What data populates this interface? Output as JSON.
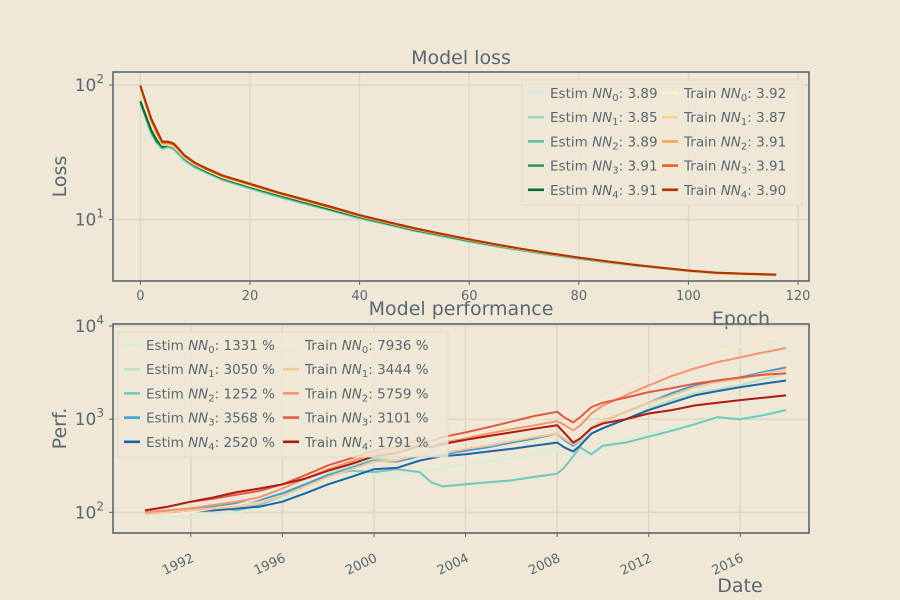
{
  "chart_data": [
    {
      "type": "line",
      "title": "Model loss",
      "xlabel": "Epoch",
      "ylabel": "Loss",
      "yscale": "log",
      "xlim": [
        -5,
        122
      ],
      "ylim": [
        3.5,
        125
      ],
      "x_ticks": [
        "0",
        "20",
        "40",
        "60",
        "80",
        "100",
        "120"
      ],
      "y_ticks": [
        {
          "base": "10",
          "exp": "2"
        },
        {
          "base": "10",
          "exp": "1"
        }
      ],
      "grid": true,
      "legend_position": "top-right",
      "x": [
        0,
        1,
        2,
        3,
        4,
        5,
        6,
        7,
        8,
        10,
        12,
        15,
        20,
        25,
        30,
        35,
        40,
        45,
        50,
        55,
        60,
        65,
        70,
        75,
        80,
        85,
        90,
        95,
        100,
        105,
        110,
        116
      ],
      "series": [
        {
          "name": "Estim",
          "sub": "0",
          "value": "3.89",
          "color": "#d6e8e6",
          "values": [
            72,
            55,
            42,
            36,
            33,
            34,
            33,
            30,
            27,
            24,
            22,
            19.5,
            16.8,
            14.6,
            13,
            11.5,
            10.1,
            9.1,
            8.2,
            7.5,
            6.8,
            6.3,
            5.8,
            5.45,
            5.1,
            4.8,
            4.55,
            4.35,
            4.15,
            4.0,
            3.95,
            3.89
          ]
        },
        {
          "name": "Estim",
          "sub": "1",
          "value": "3.85",
          "color": "#9fd6c4",
          "values": [
            73,
            56,
            43,
            37,
            33.5,
            34.5,
            33.5,
            30.5,
            27.5,
            24.3,
            22.2,
            19.7,
            17,
            14.8,
            13.1,
            11.6,
            10.2,
            9.2,
            8.25,
            7.5,
            6.85,
            6.3,
            5.85,
            5.45,
            5.1,
            4.8,
            4.55,
            4.33,
            4.13,
            3.98,
            3.92,
            3.85
          ]
        },
        {
          "name": "Estim",
          "sub": "2",
          "value": "3.89",
          "color": "#5fbf9c",
          "values": [
            74,
            57,
            44,
            37.5,
            34,
            35,
            34,
            31,
            28,
            24.6,
            22.5,
            19.9,
            17.2,
            15,
            13.2,
            11.7,
            10.3,
            9.3,
            8.3,
            7.6,
            6.9,
            6.35,
            5.9,
            5.5,
            5.15,
            4.85,
            4.58,
            4.37,
            4.17,
            4.02,
            3.95,
            3.89
          ]
        },
        {
          "name": "Estim",
          "sub": "3",
          "value": "3.91",
          "color": "#2e9a5a",
          "values": [
            75,
            58,
            45,
            38,
            34.5,
            35.5,
            34.5,
            31.5,
            28.5,
            25,
            22.8,
            20.1,
            17.4,
            15.2,
            13.4,
            11.8,
            10.4,
            9.35,
            8.35,
            7.65,
            6.95,
            6.4,
            5.92,
            5.52,
            5.17,
            4.87,
            4.6,
            4.38,
            4.18,
            4.03,
            3.97,
            3.91
          ]
        },
        {
          "name": "Estim",
          "sub": "4",
          "value": "3.91",
          "color": "#0c6b32",
          "values": [
            76,
            59,
            46,
            39,
            35,
            36,
            35,
            32,
            29,
            25.3,
            23,
            20.3,
            17.6,
            15.4,
            13.5,
            11.9,
            10.5,
            9.4,
            8.4,
            7.7,
            7.0,
            6.42,
            5.94,
            5.54,
            5.19,
            4.88,
            4.61,
            4.39,
            4.19,
            4.04,
            3.97,
            3.91
          ]
        },
        {
          "name": "Train",
          "sub": "0",
          "value": "3.92",
          "color": "#fff0c8",
          "values": [
            95,
            70,
            52,
            42,
            36,
            36,
            35,
            32,
            29,
            25.5,
            23.3,
            20.6,
            17.8,
            15.6,
            13.7,
            12.1,
            10.6,
            9.5,
            8.5,
            7.8,
            7.1,
            6.5,
            6.0,
            5.6,
            5.22,
            4.9,
            4.63,
            4.41,
            4.2,
            4.05,
            3.98,
            3.92
          ]
        },
        {
          "name": "Train",
          "sub": "1",
          "value": "3.87",
          "color": "#fdd590",
          "values": [
            96,
            71,
            53,
            43,
            36.5,
            36.5,
            35.5,
            32.5,
            29.3,
            25.7,
            23.5,
            20.8,
            18,
            15.7,
            13.8,
            12.1,
            10.6,
            9.5,
            8.5,
            7.75,
            7.05,
            6.45,
            5.95,
            5.55,
            5.18,
            4.86,
            4.58,
            4.36,
            4.15,
            4.0,
            3.93,
            3.87
          ]
        },
        {
          "name": "Train",
          "sub": "2",
          "value": "3.91",
          "color": "#f9a64a",
          "values": [
            97,
            72,
            54,
            44,
            37,
            37,
            36,
            33,
            29.6,
            26,
            23.7,
            21,
            18.2,
            15.8,
            13.9,
            12.2,
            10.7,
            9.55,
            8.55,
            7.8,
            7.1,
            6.5,
            6.0,
            5.58,
            5.21,
            4.89,
            4.62,
            4.4,
            4.19,
            4.04,
            3.97,
            3.91
          ]
        },
        {
          "name": "Train",
          "sub": "3",
          "value": "3.91",
          "color": "#e4661a",
          "values": [
            98,
            73,
            55,
            45,
            37.5,
            37.5,
            36.5,
            33.3,
            29.9,
            26.2,
            23.9,
            21.1,
            18.3,
            15.9,
            14,
            12.3,
            10.75,
            9.6,
            8.6,
            7.82,
            7.12,
            6.52,
            6.02,
            5.6,
            5.22,
            4.9,
            4.63,
            4.4,
            4.19,
            4.04,
            3.97,
            3.91
          ]
        },
        {
          "name": "Train",
          "sub": "4",
          "value": "3.90",
          "color": "#b03200",
          "values": [
            99,
            74,
            56,
            46,
            38,
            38,
            37,
            33.6,
            30.2,
            26.4,
            24.1,
            21.3,
            18.5,
            16,
            14.1,
            12.4,
            10.8,
            9.65,
            8.65,
            7.85,
            7.14,
            6.54,
            6.03,
            5.6,
            5.22,
            4.9,
            4.62,
            4.39,
            4.18,
            4.03,
            3.96,
            3.9
          ]
        }
      ]
    },
    {
      "type": "line",
      "title": "Model performance",
      "xlabel": "Date",
      "ylabel": "Perf.",
      "yscale": "log",
      "xlim": [
        1988.6,
        2019.0
      ],
      "ylim": [
        60,
        10500
      ],
      "x_ticks": [
        "1992",
        "1996",
        "2000",
        "2004",
        "2008",
        "2012",
        "2016"
      ],
      "y_ticks": [
        {
          "base": "10",
          "exp": "4"
        },
        {
          "base": "10",
          "exp": "3"
        },
        {
          "base": "10",
          "exp": "2"
        }
      ],
      "grid": true,
      "legend_position": "top-left",
      "x": [
        1990.0,
        1991.0,
        1992.0,
        1993.0,
        1994.0,
        1995.0,
        1996.0,
        1997.0,
        1998.0,
        1999.0,
        2000.0,
        2001.0,
        2002.0,
        2002.5,
        2003.0,
        2004.0,
        2005.0,
        2006.0,
        2007.0,
        2008.0,
        2008.3,
        2008.7,
        2009.0,
        2009.5,
        2010.0,
        2011.0,
        2012.0,
        2013.0,
        2014.0,
        2015.0,
        2016.0,
        2017.0,
        2018.0
      ],
      "series": [
        {
          "name": "Estim",
          "sub": "0",
          "value": "1331 %",
          "color": "#d8eedb",
          "values": [
            95,
            90,
            88,
            95,
            100,
            110,
            140,
            170,
            210,
            240,
            260,
            240,
            290,
            280,
            300,
            330,
            350,
            380,
            420,
            480,
            420,
            380,
            400,
            450,
            500,
            600,
            700,
            800,
            900,
            1000,
            1050,
            1150,
            1300
          ]
        },
        {
          "name": "Estim",
          "sub": "1",
          "value": "3050 %",
          "color": "#b7e3c0",
          "values": [
            100,
            105,
            110,
            115,
            120,
            135,
            160,
            200,
            260,
            310,
            380,
            360,
            420,
            400,
            430,
            480,
            520,
            580,
            640,
            700,
            600,
            520,
            560,
            720,
            800,
            1000,
            1300,
            1600,
            1900,
            2100,
            2300,
            2700,
            3100
          ]
        },
        {
          "name": "Estim",
          "sub": "2",
          "value": "1252 %",
          "color": "#70c8be",
          "values": [
            100,
            102,
            108,
            115,
            105,
            120,
            150,
            200,
            250,
            280,
            270,
            290,
            270,
            210,
            190,
            200,
            210,
            220,
            240,
            260,
            300,
            400,
            500,
            420,
            520,
            560,
            650,
            750,
            880,
            1050,
            1000,
            1100,
            1250
          ]
        },
        {
          "name": "Estim",
          "sub": "3",
          "value": "3568 %",
          "color": "#3e9fd0",
          "values": [
            100,
            105,
            110,
            118,
            125,
            135,
            160,
            200,
            250,
            300,
            360,
            350,
            400,
            400,
            420,
            460,
            500,
            560,
            620,
            700,
            600,
            520,
            600,
            820,
            950,
            1200,
            1500,
            1900,
            2300,
            2600,
            2800,
            3200,
            3600
          ]
        },
        {
          "name": "Estim",
          "sub": "4",
          "value": "2520 %",
          "color": "#1e64ac",
          "values": [
            100,
            100,
            102,
            105,
            110,
            115,
            130,
            160,
            200,
            240,
            290,
            300,
            360,
            380,
            400,
            420,
            450,
            480,
            520,
            560,
            500,
            450,
            520,
            700,
            800,
            1000,
            1250,
            1500,
            1800,
            2000,
            2200,
            2400,
            2600
          ]
        },
        {
          "name": "Train",
          "sub": "0",
          "value": "7936 %",
          "color": "#fde8cc",
          "values": [
            100,
            95,
            100,
            110,
            120,
            140,
            180,
            230,
            300,
            380,
            480,
            500,
            580,
            560,
            600,
            680,
            760,
            860,
            980,
            1100,
            1000,
            900,
            1000,
            1400,
            1700,
            2200,
            3000,
            3800,
            4600,
            5400,
            6000,
            7000,
            8000
          ]
        },
        {
          "name": "Train",
          "sub": "1",
          "value": "3444 %",
          "color": "#fbc69a",
          "values": [
            95,
            100,
            105,
            110,
            115,
            125,
            150,
            190,
            240,
            290,
            350,
            360,
            420,
            410,
            430,
            480,
            520,
            580,
            640,
            700,
            620,
            540,
            600,
            820,
            950,
            1200,
            1500,
            1800,
            2200,
            2500,
            2700,
            3100,
            3400
          ]
        },
        {
          "name": "Train",
          "sub": "2",
          "value": "5759 %",
          "color": "#f59470",
          "values": [
            100,
            105,
            110,
            120,
            130,
            145,
            180,
            230,
            290,
            350,
            430,
            460,
            540,
            520,
            560,
            620,
            700,
            780,
            860,
            950,
            870,
            760,
            850,
            1150,
            1400,
            1800,
            2300,
            2900,
            3500,
            4100,
            4600,
            5200,
            5800
          ]
        },
        {
          "name": "Train",
          "sub": "3",
          "value": "3101 %",
          "color": "#e15a40",
          "values": [
            105,
            115,
            130,
            140,
            155,
            170,
            200,
            250,
            320,
            380,
            460,
            500,
            600,
            580,
            640,
            720,
            820,
            940,
            1080,
            1200,
            1050,
            920,
            1050,
            1350,
            1500,
            1700,
            1950,
            2150,
            2400,
            2600,
            2800,
            3000,
            3100
          ]
        },
        {
          "name": "Train",
          "sub": "4",
          "value": "1791 %",
          "color": "#b01810",
          "values": [
            105,
            115,
            130,
            145,
            165,
            180,
            200,
            230,
            280,
            330,
            400,
            430,
            520,
            500,
            540,
            600,
            660,
            720,
            790,
            860,
            720,
            560,
            620,
            800,
            900,
            1000,
            1150,
            1250,
            1400,
            1500,
            1600,
            1700,
            1800
          ]
        }
      ]
    }
  ]
}
